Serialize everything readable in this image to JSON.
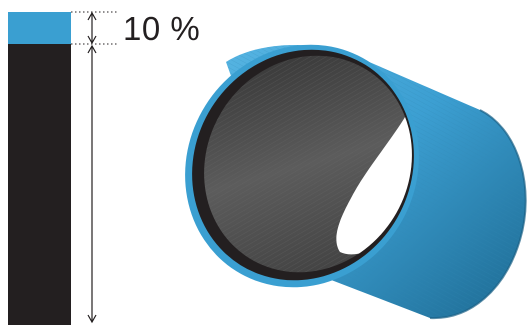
{
  "layer_share": {
    "label": "10 %",
    "value_percent": 10
  },
  "colors": {
    "outer_layer": "#3a9fd1",
    "core_layer": "#231f20",
    "inner_bore": "#4a4a4a",
    "dimension_line": "#231f20"
  }
}
